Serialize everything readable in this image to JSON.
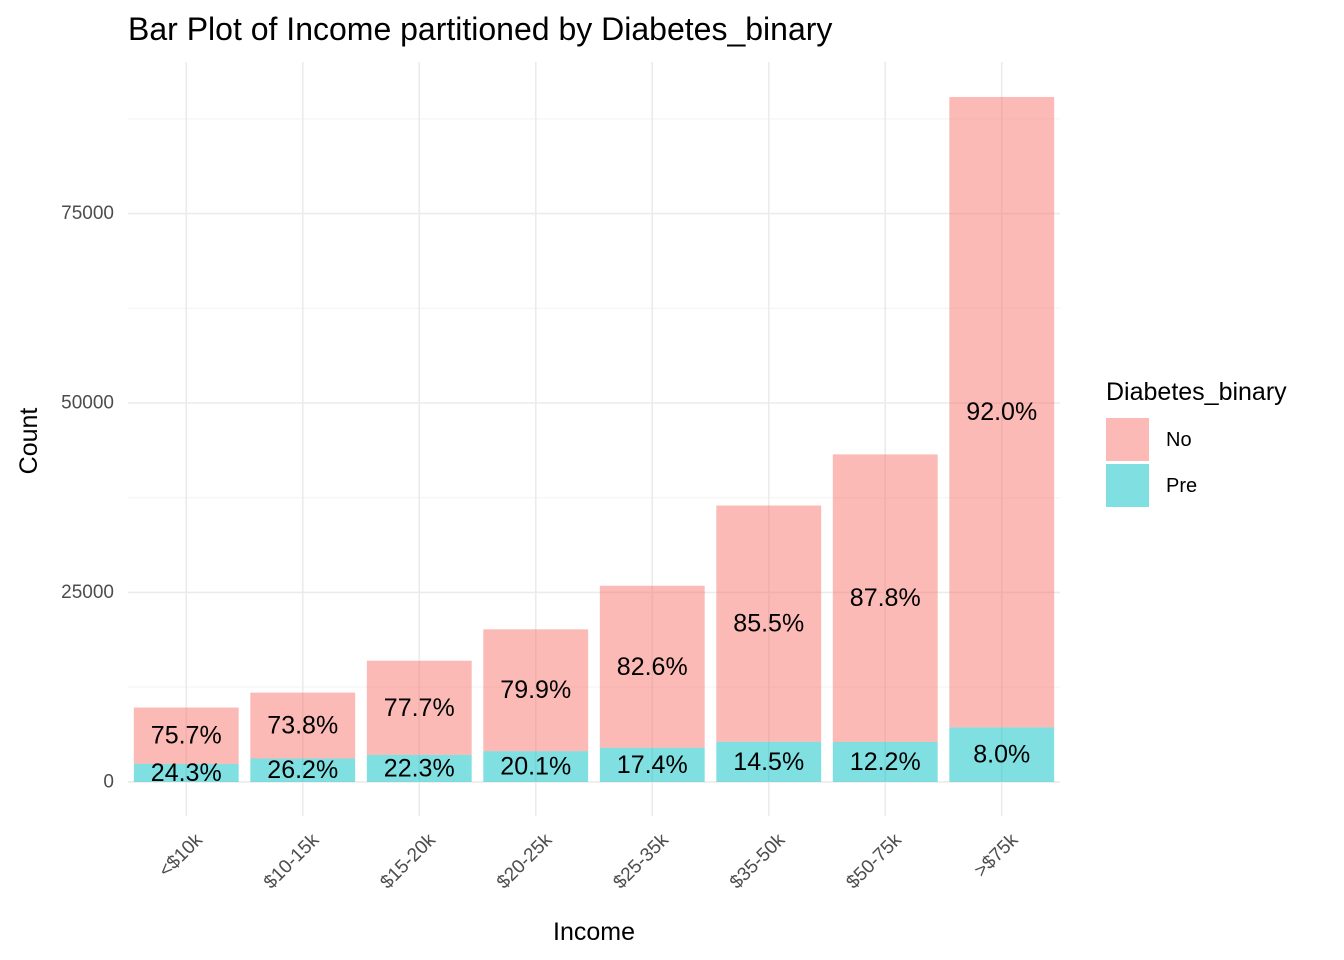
{
  "chart_data": {
    "type": "bar",
    "stacked": true,
    "title": "Bar Plot of Income partitioned by Diabetes_binary",
    "xlabel": "Income",
    "ylabel": "Count",
    "categories": [
      "<$10k",
      "$10-15k",
      "$15-20k",
      "$20-25k",
      "$25-35k",
      "$35-50k",
      "$50-75k",
      ">$75k"
    ],
    "series": [
      {
        "name": "No",
        "color": "#F8766D",
        "values": [
          7428,
          8697,
          12426,
          16081,
          21379,
          31179,
          37954,
          83190
        ],
        "labels": [
          "75.7%",
          "73.8%",
          "77.7%",
          "79.9%",
          "82.6%",
          "85.5%",
          "87.8%",
          "92.0%"
        ]
      },
      {
        "name": "Pre",
        "color": "#00BFC4",
        "values": [
          2383,
          3086,
          3568,
          4054,
          4504,
          5291,
          5265,
          7195
        ],
        "labels": [
          "24.3%",
          "26.2%",
          "22.3%",
          "20.1%",
          "17.4%",
          "14.5%",
          "12.2%",
          "8.0%"
        ]
      }
    ],
    "yticks": [
      0,
      25000,
      50000,
      75000
    ],
    "ytick_labels": [
      "0",
      "25000",
      "50000",
      "75000"
    ],
    "ylim": [
      -4500,
      95000
    ],
    "grid": true,
    "legend": {
      "title": "Diabetes_binary",
      "position": "right"
    },
    "bar_opacity": 0.5
  }
}
